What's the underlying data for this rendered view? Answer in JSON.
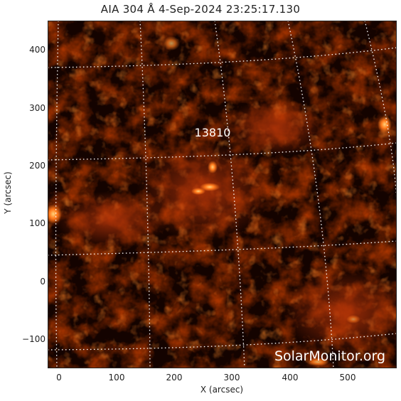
{
  "title": "AIA 304 Å   4-Sep-2024  23:25:17.130",
  "region_label": "13810",
  "watermark": "SolarMonitor.org",
  "x_axis": {
    "label": "X (arcsec)",
    "ticks": [
      "0",
      "100",
      "200",
      "300",
      "400",
      "500"
    ],
    "range": [
      -20,
      580
    ]
  },
  "y_axis": {
    "label": "Y (arcsec)",
    "ticks": [
      "400",
      "300",
      "200",
      "100",
      "0",
      "−100"
    ],
    "range": [
      -150,
      450
    ]
  },
  "colors": {
    "colormap": "sdoaia304",
    "dark": "#0a0200",
    "mid": "#8a1a00",
    "bright": "#ff9a30",
    "grid": "#ffffff"
  }
}
